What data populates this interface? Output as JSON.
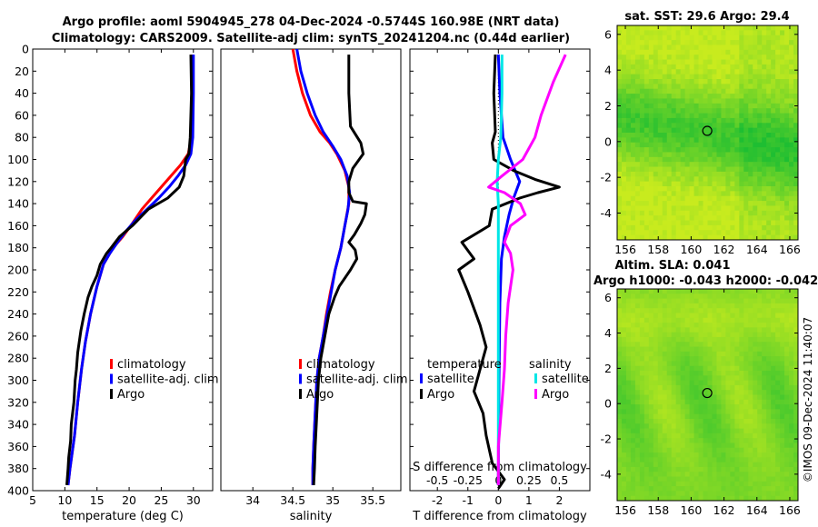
{
  "title": {
    "line1": "Argo profile: aoml 5904945_278 04-Dec-2024 -0.5744S 160.98E (NRT data)",
    "line2": "Climatology: CARS2009. Satellite-adj clim: synTS_20241204.nc (0.44d earlier)"
  },
  "watermark": "©IMOS 09-Dec-2024 11:40:07",
  "colors": {
    "clim": "#ff0000",
    "sat": "#0000ff",
    "argo": "#000000",
    "sdiff_sat": "#00e6e6",
    "sdiff_argo": "#ff00ff"
  },
  "chart_data": [
    {
      "type": "line",
      "id": "temperature",
      "xlabel": "temperature (deg C)",
      "xlim": [
        5,
        33
      ],
      "ylim": [
        400,
        0
      ],
      "xticks": [
        "5",
        "10",
        "15",
        "20",
        "25",
        "30"
      ],
      "xtick_values": [
        5,
        10,
        15,
        20,
        25,
        30
      ],
      "yticks": [
        "0",
        "20",
        "40",
        "60",
        "80",
        "100",
        "120",
        "140",
        "160",
        "180",
        "200",
        "220",
        "240",
        "260",
        "280",
        "300",
        "320",
        "340",
        "360",
        "380",
        "400"
      ],
      "ytick_values": [
        0,
        20,
        40,
        60,
        80,
        100,
        120,
        140,
        160,
        180,
        200,
        220,
        240,
        260,
        280,
        300,
        320,
        340,
        360,
        380,
        400
      ],
      "legend": [
        "climatology",
        "satellite-adj. clim",
        "Argo"
      ],
      "series": [
        {
          "name": "climatology",
          "color": "#ff0000",
          "points": [
            [
              29.8,
              5
            ],
            [
              29.8,
              40
            ],
            [
              29.7,
              80
            ],
            [
              29.2,
              95
            ],
            [
              28,
              105
            ],
            [
              26.5,
              115
            ],
            [
              25,
              125
            ],
            [
              23.5,
              135
            ],
            [
              22,
              145
            ],
            [
              20.5,
              158
            ],
            [
              19,
              170
            ],
            [
              17.5,
              180
            ],
            [
              16,
              195
            ],
            [
              15,
              215
            ],
            [
              14,
              240
            ],
            [
              13.2,
              265
            ],
            [
              12.6,
              290
            ],
            [
              12,
              320
            ],
            [
              11.5,
              350
            ],
            [
              10.8,
              380
            ],
            [
              10.5,
              395
            ]
          ]
        },
        {
          "name": "satellite-adj. clim",
          "color": "#0000ff",
          "points": [
            [
              30,
              5
            ],
            [
              30,
              40
            ],
            [
              29.9,
              80
            ],
            [
              29.6,
              95
            ],
            [
              28.8,
              105
            ],
            [
              27.6,
              115
            ],
            [
              26.2,
              125
            ],
            [
              24.6,
              135
            ],
            [
              22.8,
              145
            ],
            [
              21,
              155
            ],
            [
              19.5,
              165
            ],
            [
              18.2,
              175
            ],
            [
              17,
              185
            ],
            [
              16,
              195
            ],
            [
              15,
              215
            ],
            [
              14,
              240
            ],
            [
              13.2,
              265
            ],
            [
              12.6,
              290
            ],
            [
              12,
              320
            ],
            [
              11.5,
              350
            ],
            [
              10.8,
              380
            ],
            [
              10.5,
              395
            ]
          ]
        },
        {
          "name": "Argo",
          "color": "#000000",
          "points": [
            [
              29.6,
              5
            ],
            [
              29.7,
              40
            ],
            [
              29.5,
              80
            ],
            [
              29.3,
              95
            ],
            [
              28.8,
              100
            ],
            [
              28.5,
              115
            ],
            [
              27.8,
              125
            ],
            [
              26,
              135
            ],
            [
              23,
              145
            ],
            [
              20.5,
              160
            ],
            [
              18.5,
              170
            ],
            [
              17.2,
              180
            ],
            [
              16.5,
              185
            ],
            [
              15.5,
              195
            ],
            [
              15,
              205
            ],
            [
              14.2,
              215
            ],
            [
              13.6,
              225
            ],
            [
              13,
              240
            ],
            [
              12.5,
              255
            ],
            [
              12,
              275
            ],
            [
              11.8,
              290
            ],
            [
              11.6,
              300
            ],
            [
              11.4,
              320
            ],
            [
              11,
              340
            ],
            [
              10.9,
              355
            ],
            [
              10.6,
              370
            ],
            [
              10.5,
              380
            ],
            [
              10.3,
              395
            ]
          ]
        }
      ]
    },
    {
      "type": "line",
      "id": "salinity",
      "xlabel": "salinity",
      "xlim": [
        33.6,
        35.85
      ],
      "ylim": [
        400,
        0
      ],
      "xticks": [
        "34",
        "34.5",
        "35",
        "35.5"
      ],
      "xtick_values": [
        34,
        34.5,
        35,
        35.5
      ],
      "legend": [
        "climatology",
        "satellite-adj. clim",
        "Argo"
      ],
      "series": [
        {
          "name": "climatology",
          "color": "#ff0000",
          "points": [
            [
              34.5,
              0
            ],
            [
              34.55,
              20
            ],
            [
              34.62,
              40
            ],
            [
              34.72,
              60
            ],
            [
              34.84,
              75
            ],
            [
              34.96,
              85
            ],
            [
              35.05,
              95
            ],
            [
              35.15,
              110
            ],
            [
              35.2,
              125
            ],
            [
              35.2,
              140
            ],
            [
              35.15,
              160
            ],
            [
              35.1,
              180
            ],
            [
              35.03,
              200
            ],
            [
              34.97,
              220
            ],
            [
              34.92,
              240
            ],
            [
              34.88,
              260
            ],
            [
              34.83,
              280
            ],
            [
              34.8,
              300
            ],
            [
              34.78,
              330
            ],
            [
              34.76,
              360
            ],
            [
              34.75,
              380
            ],
            [
              34.75,
              395
            ]
          ]
        },
        {
          "name": "satellite-adj. clim",
          "color": "#0000ff",
          "points": [
            [
              34.55,
              0
            ],
            [
              34.6,
              20
            ],
            [
              34.68,
              40
            ],
            [
              34.78,
              60
            ],
            [
              34.88,
              75
            ],
            [
              35,
              88
            ],
            [
              35.1,
              100
            ],
            [
              35.18,
              115
            ],
            [
              35.21,
              130
            ],
            [
              35.19,
              145
            ],
            [
              35.15,
              160
            ],
            [
              35.1,
              180
            ],
            [
              35.03,
              200
            ],
            [
              34.98,
              220
            ],
            [
              34.93,
              240
            ],
            [
              34.88,
              260
            ],
            [
              34.83,
              280
            ],
            [
              34.8,
              300
            ],
            [
              34.78,
              330
            ],
            [
              34.76,
              360
            ],
            [
              34.75,
              380
            ],
            [
              34.75,
              395
            ]
          ]
        },
        {
          "name": "Argo",
          "color": "#000000",
          "points": [
            [
              35.2,
              5
            ],
            [
              35.2,
              40
            ],
            [
              35.22,
              70
            ],
            [
              35.35,
              85
            ],
            [
              35.38,
              95
            ],
            [
              35.33,
              100
            ],
            [
              35.25,
              108
            ],
            [
              35.2,
              120
            ],
            [
              35.2,
              130
            ],
            [
              35.25,
              138
            ],
            [
              35.42,
              140
            ],
            [
              35.4,
              150
            ],
            [
              35.35,
              158
            ],
            [
              35.27,
              168
            ],
            [
              35.2,
              175
            ],
            [
              35.28,
              182
            ],
            [
              35.3,
              190
            ],
            [
              35.22,
              200
            ],
            [
              35.08,
              215
            ],
            [
              35.02,
              225
            ],
            [
              34.95,
              240
            ],
            [
              34.9,
              260
            ],
            [
              34.85,
              280
            ],
            [
              34.82,
              300
            ],
            [
              34.8,
              330
            ],
            [
              34.78,
              360
            ],
            [
              34.77,
              380
            ],
            [
              34.76,
              395
            ]
          ]
        }
      ]
    },
    {
      "type": "line",
      "id": "difference",
      "xlabel": "T difference from climatology",
      "xlabel2": "S difference from climatology",
      "xlim": [
        -2.9,
        3.0
      ],
      "ylim": [
        400,
        0
      ],
      "xticks": [
        "-2",
        "-1",
        "0",
        "1",
        "2"
      ],
      "xtick_values": [
        -2,
        -1,
        0,
        1,
        2
      ],
      "xticks2": [
        "-0.5",
        "-0.25",
        "0",
        "0.25",
        "0.5"
      ],
      "xtick2_values": [
        -0.5,
        -0.25,
        0,
        0.25,
        0.5
      ],
      "legend_titles": [
        "temperature",
        "salinity"
      ],
      "legend": [
        "satellite",
        "Argo",
        "satellite",
        "Argo"
      ],
      "series": [
        {
          "name": "T satellite",
          "color": "#0000ff",
          "points": [
            [
              0,
              5
            ],
            [
              0.05,
              40
            ],
            [
              0.15,
              80
            ],
            [
              0.4,
              100
            ],
            [
              0.7,
              120
            ],
            [
              0.5,
              135
            ],
            [
              0.35,
              150
            ],
            [
              0.2,
              170
            ],
            [
              0.1,
              190
            ],
            [
              0.05,
              230
            ],
            [
              0.02,
              300
            ],
            [
              0,
              395
            ]
          ]
        },
        {
          "name": "T Argo",
          "color": "#000000",
          "points": [
            [
              -0.1,
              5
            ],
            [
              -0.15,
              40
            ],
            [
              -0.1,
              75
            ],
            [
              -0.2,
              85
            ],
            [
              -0.15,
              100
            ],
            [
              0.5,
              110
            ],
            [
              1.2,
              118
            ],
            [
              2,
              125
            ],
            [
              1.3,
              130
            ],
            [
              0.7,
              135
            ],
            [
              -0.2,
              145
            ],
            [
              -0.3,
              160
            ],
            [
              -1.2,
              175
            ],
            [
              -0.8,
              190
            ],
            [
              -1.3,
              200
            ],
            [
              -1.0,
              220
            ],
            [
              -0.6,
              250
            ],
            [
              -0.4,
              270
            ],
            [
              -0.6,
              290
            ],
            [
              -0.8,
              310
            ],
            [
              -0.5,
              330
            ],
            [
              -0.4,
              350
            ],
            [
              -0.2,
              375
            ],
            [
              0.2,
              390
            ],
            [
              0,
              398
            ]
          ]
        },
        {
          "name": "S satellite",
          "color": "#00e6e6",
          "points": [
            [
              0.03,
              5
            ],
            [
              0.03,
              40
            ],
            [
              0.02,
              80
            ],
            [
              0.0,
              100
            ],
            [
              -0.01,
              120
            ],
            [
              0.0,
              140
            ],
            [
              0,
              170
            ],
            [
              0,
              200
            ],
            [
              0,
              260
            ],
            [
              0,
              330
            ],
            [
              0,
              395
            ]
          ]
        },
        {
          "name": "S Argo",
          "color": "#ff00ff",
          "points": [
            [
              0.55,
              5
            ],
            [
              0.45,
              30
            ],
            [
              0.35,
              60
            ],
            [
              0.3,
              80
            ],
            [
              0.2,
              100
            ],
            [
              0.03,
              115
            ],
            [
              -0.08,
              125
            ],
            [
              0.05,
              130
            ],
            [
              0.18,
              140
            ],
            [
              0.22,
              150
            ],
            [
              0.1,
              160
            ],
            [
              0.05,
              175
            ],
            [
              0.1,
              185
            ],
            [
              0.12,
              200
            ],
            [
              0.08,
              230
            ],
            [
              0.06,
              260
            ],
            [
              0.05,
              290
            ],
            [
              0.03,
              320
            ],
            [
              0,
              360
            ],
            [
              0,
              395
            ]
          ]
        }
      ]
    },
    {
      "type": "heatmap",
      "id": "sst_map",
      "title": "sat. SST: 29.6 Argo: 29.4",
      "xlim": [
        155.5,
        166.5
      ],
      "ylim": [
        -5.5,
        6.5
      ],
      "xticks": [
        "156",
        "158",
        "160",
        "162",
        "164",
        "166"
      ],
      "xtick_values": [
        156,
        158,
        160,
        162,
        164,
        166
      ],
      "yticks": [
        "6",
        "4",
        "2",
        "0",
        "-2",
        "-4"
      ],
      "ytick_values": [
        6,
        4,
        2,
        0,
        -2,
        -4
      ],
      "marker": [
        160.98,
        0.6
      ]
    },
    {
      "type": "heatmap",
      "id": "sla_map",
      "title": "Altim. SLA: 0.041",
      "subtitle": "Argo h1000: -0.043 h2000: -0.042",
      "xlim": [
        155.5,
        166.5
      ],
      "ylim": [
        -5.5,
        6.5
      ],
      "xticks": [
        "156",
        "158",
        "160",
        "162",
        "164",
        "166"
      ],
      "xtick_values": [
        156,
        158,
        160,
        162,
        164,
        166
      ],
      "yticks": [
        "6",
        "4",
        "2",
        "0",
        "-2",
        "-4"
      ],
      "ytick_values": [
        6,
        4,
        2,
        0,
        -2,
        -4
      ],
      "marker": [
        160.98,
        0.6
      ]
    }
  ]
}
